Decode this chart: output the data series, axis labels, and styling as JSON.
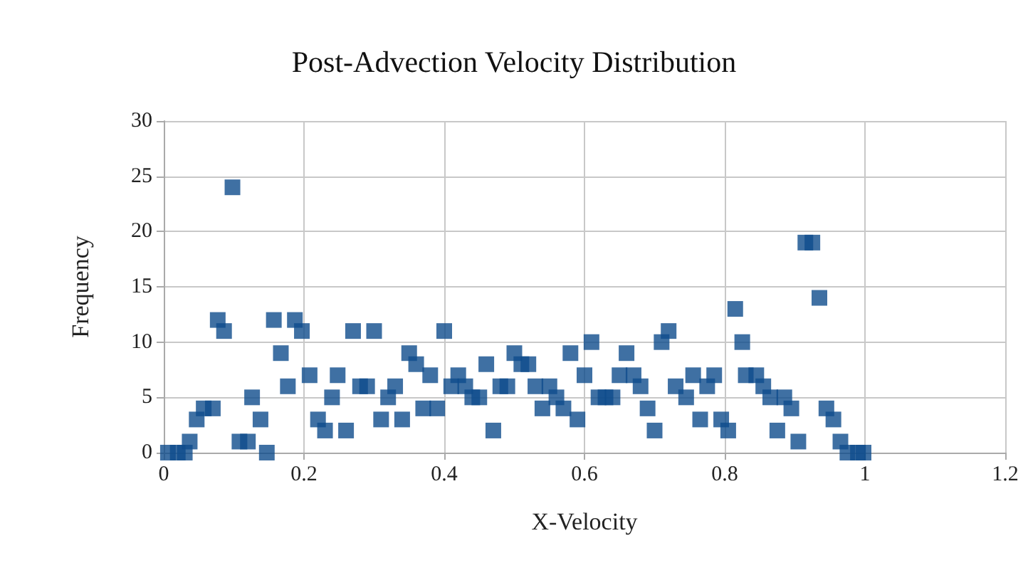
{
  "chart_data": {
    "type": "scatter",
    "title": "Post-Advection Velocity Distribution",
    "xlabel": "X-Velocity",
    "ylabel": "Frequency",
    "x": [
      0.006,
      0.02,
      0.03,
      0.037,
      0.047,
      0.057,
      0.07,
      0.077,
      0.086,
      0.098,
      0.108,
      0.12,
      0.126,
      0.138,
      0.147,
      0.157,
      0.167,
      0.177,
      0.187,
      0.197,
      0.208,
      0.22,
      0.23,
      0.24,
      0.248,
      0.26,
      0.27,
      0.28,
      0.29,
      0.3,
      0.31,
      0.32,
      0.33,
      0.34,
      0.35,
      0.36,
      0.37,
      0.38,
      0.39,
      0.4,
      0.41,
      0.42,
      0.43,
      0.44,
      0.45,
      0.46,
      0.47,
      0.48,
      0.49,
      0.5,
      0.51,
      0.52,
      0.53,
      0.54,
      0.55,
      0.56,
      0.57,
      0.58,
      0.59,
      0.6,
      0.61,
      0.62,
      0.63,
      0.64,
      0.65,
      0.66,
      0.67,
      0.68,
      0.69,
      0.7,
      0.71,
      0.72,
      0.73,
      0.745,
      0.755,
      0.765,
      0.775,
      0.785,
      0.795,
      0.805,
      0.815,
      0.825,
      0.83,
      0.845,
      0.855,
      0.865,
      0.875,
      0.885,
      0.895,
      0.905,
      0.915,
      0.925,
      0.935,
      0.945,
      0.955,
      0.965,
      0.975,
      0.99,
      0.998
    ],
    "series": [
      {
        "color": "#0f4c8c",
        "values": [
          0,
          0,
          0,
          1,
          3,
          4,
          4,
          12,
          11,
          24,
          1,
          1,
          5,
          3,
          0,
          12,
          9,
          6,
          12,
          11,
          7,
          3,
          2,
          5,
          7,
          2,
          11,
          6,
          6,
          11,
          3,
          5,
          6,
          3,
          9,
          8,
          4,
          7,
          4,
          11,
          6,
          7,
          6,
          5,
          5,
          8,
          2,
          6,
          6,
          9,
          8,
          8,
          6,
          4,
          6,
          5,
          4,
          9,
          3,
          7,
          10,
          5,
          5,
          5,
          7,
          9,
          7,
          6,
          4,
          2,
          10,
          11,
          6,
          5,
          7,
          3,
          6,
          7,
          3,
          2,
          13,
          10,
          7,
          7,
          6,
          5,
          2,
          5,
          4,
          1,
          19,
          19,
          14,
          4,
          3,
          1,
          0,
          0,
          0
        ]
      }
    ],
    "xlim": [
      0,
      1.2
    ],
    "xticks": [
      0,
      0.2,
      0.4,
      0.6,
      0.8,
      1,
      1.2
    ],
    "ylim": [
      0,
      30
    ],
    "yticks": [
      0,
      5,
      10,
      15,
      20,
      25,
      30
    ],
    "grid": true,
    "marker": "square"
  }
}
